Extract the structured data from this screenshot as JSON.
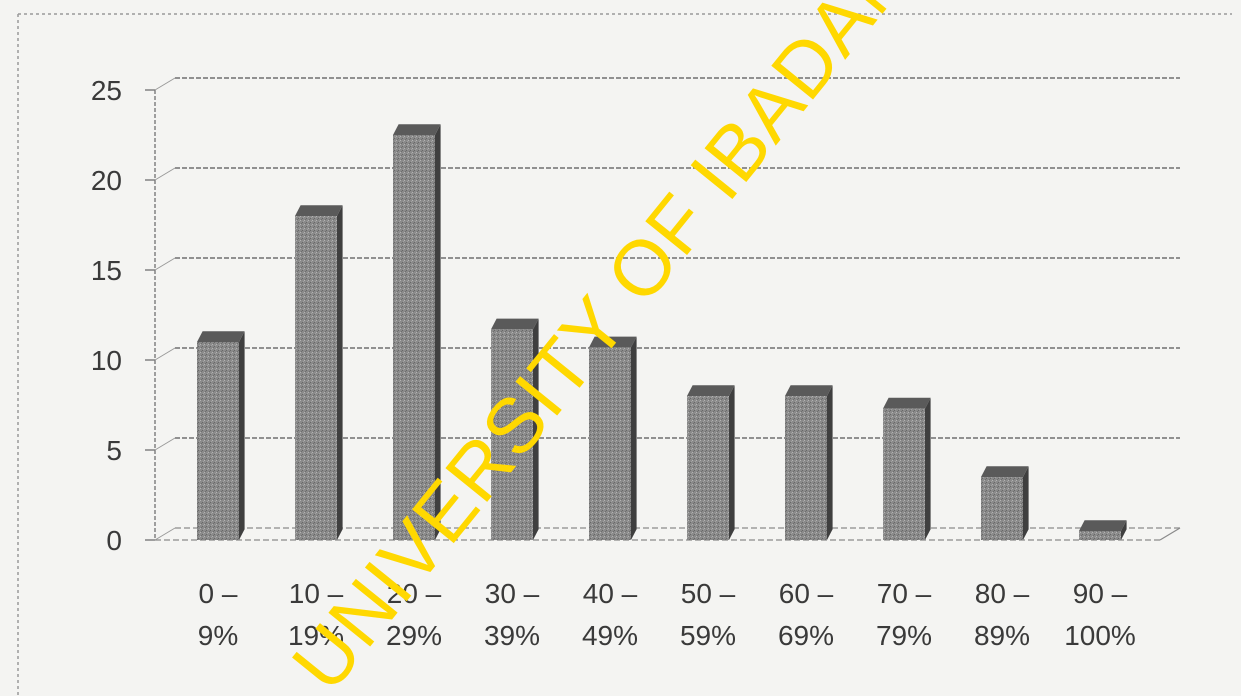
{
  "chart_data": {
    "type": "bar",
    "categories": [
      [
        "0 –",
        "9%"
      ],
      [
        "10 –",
        "19%"
      ],
      [
        "20 –",
        "29%"
      ],
      [
        "30 –",
        "39%"
      ],
      [
        "40 –",
        "49%"
      ],
      [
        "50 –",
        "59%"
      ],
      [
        "60 –",
        "69%"
      ],
      [
        "70 –",
        "79%"
      ],
      [
        "80 –",
        "89%"
      ],
      [
        "90 –",
        "100%"
      ]
    ],
    "values": [
      11,
      18,
      22.5,
      11.7,
      10.7,
      8,
      8,
      7.3,
      3.5,
      0.5
    ],
    "ylim": [
      0,
      25
    ],
    "yticks": [
      0,
      5,
      10,
      15,
      20,
      25
    ],
    "grid": true,
    "bar_color": "#8a8a8a"
  },
  "watermark": {
    "text": "UNIVERSITY OF IBADAN LIBRARY",
    "color": "#ffd800"
  }
}
